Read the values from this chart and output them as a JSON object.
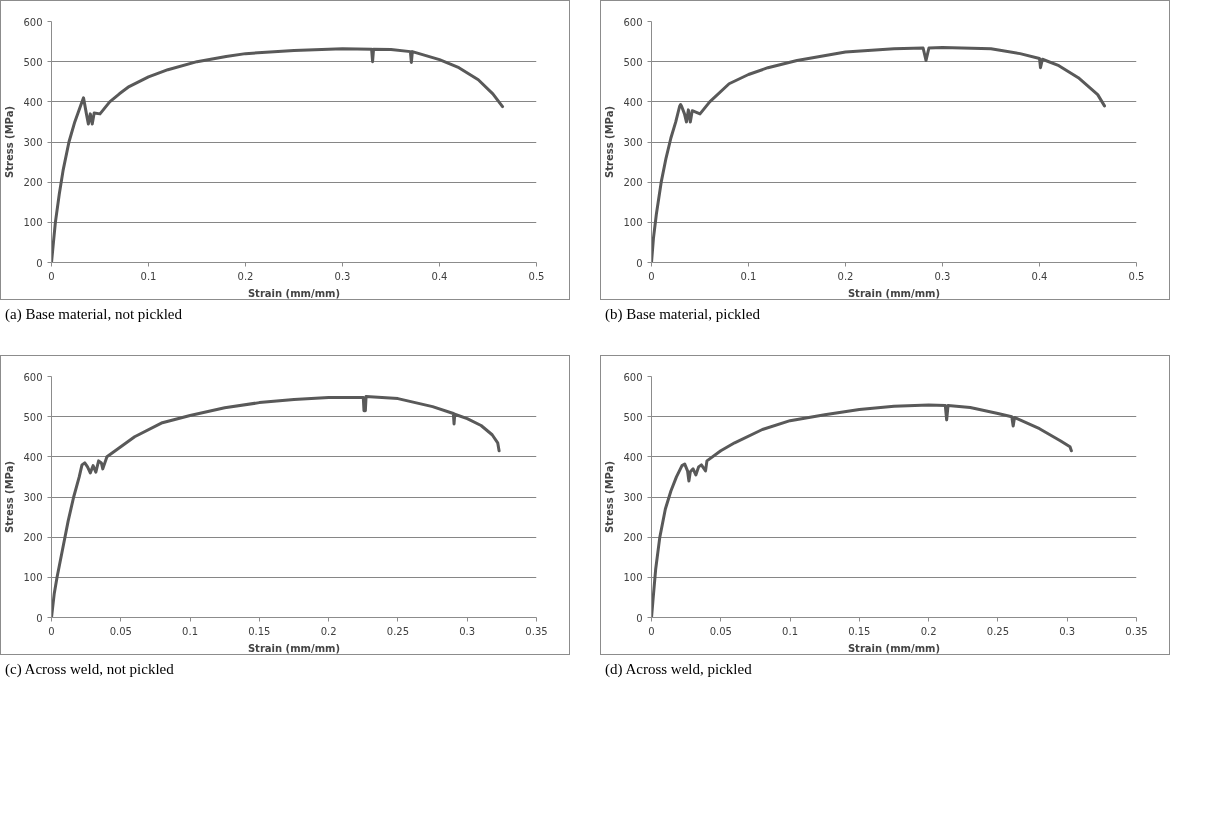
{
  "chart_data": [
    {
      "type": "line",
      "xlabel": "Strain (mm/mm)",
      "ylabel": "Stress (MPa)",
      "annotations": [
        "(a) Base material, not pickled"
      ],
      "xlim": [
        0,
        0.5
      ],
      "ylim": [
        0,
        600
      ],
      "xticks": [
        0,
        0.1,
        0.2,
        0.3,
        0.4,
        0.5
      ],
      "yticks": [
        0,
        100,
        200,
        300,
        400,
        500,
        600
      ],
      "grid": "y",
      "marker": "none",
      "line_style": "solid",
      "series": [
        {
          "color": "#595959",
          "x": [
            0,
            0.002,
            0.004,
            0.008,
            0.012,
            0.018,
            0.024,
            0.03,
            0.033,
            0.036,
            0.038,
            0.04,
            0.042,
            0.044,
            0.05,
            0.06,
            0.07,
            0.08,
            0.1,
            0.12,
            0.15,
            0.18,
            0.2,
            0.25,
            0.3,
            0.33,
            0.331,
            0.332,
            0.35,
            0.37,
            0.371,
            0.372,
            0.4,
            0.42,
            0.44,
            0.455,
            0.465
          ],
          "values": [
            0,
            50,
            100,
            170,
            230,
            300,
            350,
            390,
            410,
            370,
            345,
            370,
            345,
            372,
            370,
            400,
            420,
            438,
            462,
            480,
            500,
            513,
            520,
            528,
            532,
            531,
            500,
            531,
            530,
            525,
            498,
            525,
            505,
            485,
            455,
            420,
            388
          ]
        }
      ]
    },
    {
      "type": "line",
      "xlabel": "Strain (mm/mm)",
      "ylabel": "Stress (MPa)",
      "annotations": [
        "(b) Base material, pickled"
      ],
      "xlim": [
        0,
        0.5
      ],
      "ylim": [
        0,
        600
      ],
      "xticks": [
        0,
        0.1,
        0.2,
        0.3,
        0.4,
        0.5
      ],
      "yticks": [
        0,
        100,
        200,
        300,
        400,
        500,
        600
      ],
      "grid": "y",
      "marker": "none",
      "line_style": "solid",
      "series": [
        {
          "color": "#595959",
          "x": [
            0,
            0.002,
            0.005,
            0.01,
            0.015,
            0.02,
            0.025,
            0.029,
            0.03,
            0.031,
            0.034,
            0.036,
            0.038,
            0.04,
            0.042,
            0.05,
            0.06,
            0.08,
            0.1,
            0.12,
            0.15,
            0.2,
            0.25,
            0.28,
            0.283,
            0.286,
            0.3,
            0.35,
            0.38,
            0.4,
            0.401,
            0.403,
            0.42,
            0.44,
            0.46,
            0.467
          ],
          "values": [
            0,
            60,
            120,
            200,
            260,
            310,
            350,
            389,
            393,
            389,
            370,
            350,
            380,
            350,
            378,
            370,
            400,
            445,
            468,
            485,
            503,
            524,
            532,
            534,
            503,
            534,
            535,
            532,
            520,
            508,
            485,
            506,
            490,
            460,
            418,
            390
          ]
        }
      ]
    },
    {
      "type": "line",
      "xlabel": "Strain (mm/mm)",
      "ylabel": "Stress (MPa)",
      "annotations": [
        "(c) Across weld, not pickled"
      ],
      "xlim": [
        0,
        0.35
      ],
      "ylim": [
        0,
        600
      ],
      "xticks": [
        0,
        0.05,
        0.1,
        0.15,
        0.2,
        0.25,
        0.3,
        0.35
      ],
      "yticks": [
        0,
        100,
        200,
        300,
        400,
        500,
        600
      ],
      "grid": "y",
      "marker": "none",
      "line_style": "solid",
      "series": [
        {
          "color": "#595959",
          "x": [
            0,
            0.002,
            0.004,
            0.008,
            0.012,
            0.016,
            0.02,
            0.022,
            0.024,
            0.026,
            0.028,
            0.03,
            0.032,
            0.034,
            0.036,
            0.037,
            0.04,
            0.05,
            0.06,
            0.08,
            0.1,
            0.125,
            0.15,
            0.175,
            0.2,
            0.225,
            0.2255,
            0.2265,
            0.227,
            0.25,
            0.275,
            0.29,
            0.2905,
            0.291,
            0.3,
            0.31,
            0.318,
            0.322,
            0.323
          ],
          "values": [
            0,
            60,
            100,
            170,
            240,
            300,
            350,
            380,
            385,
            375,
            360,
            378,
            362,
            390,
            385,
            370,
            400,
            425,
            450,
            485,
            503,
            522,
            535,
            543,
            548,
            548,
            515,
            515,
            550,
            545,
            525,
            508,
            482,
            506,
            495,
            478,
            455,
            435,
            415
          ]
        }
      ]
    },
    {
      "type": "line",
      "xlabel": "Strain (mm/mm)",
      "ylabel": "Stress (MPa)",
      "annotations": [
        "(d) Across weld, pickled"
      ],
      "xlim": [
        0,
        0.35
      ],
      "ylim": [
        0,
        600
      ],
      "xticks": [
        0,
        0.05,
        0.1,
        0.15,
        0.2,
        0.25,
        0.3,
        0.35
      ],
      "yticks": [
        0,
        100,
        200,
        300,
        400,
        500,
        600
      ],
      "grid": "y",
      "marker": "none",
      "line_style": "solid",
      "series": [
        {
          "color": "#595959",
          "x": [
            0,
            0.001,
            0.003,
            0.006,
            0.01,
            0.014,
            0.018,
            0.022,
            0.024,
            0.026,
            0.027,
            0.028,
            0.03,
            0.032,
            0.034,
            0.036,
            0.039,
            0.04,
            0.05,
            0.06,
            0.08,
            0.1,
            0.125,
            0.15,
            0.175,
            0.2,
            0.212,
            0.213,
            0.214,
            0.23,
            0.25,
            0.26,
            0.261,
            0.262,
            0.28,
            0.295,
            0.302,
            0.303
          ],
          "values": [
            0,
            40,
            120,
            200,
            270,
            315,
            350,
            378,
            382,
            365,
            340,
            363,
            370,
            355,
            375,
            380,
            365,
            390,
            415,
            435,
            468,
            490,
            505,
            518,
            526,
            529,
            528,
            492,
            528,
            523,
            508,
            500,
            477,
            498,
            470,
            440,
            425,
            415
          ]
        }
      ]
    }
  ]
}
